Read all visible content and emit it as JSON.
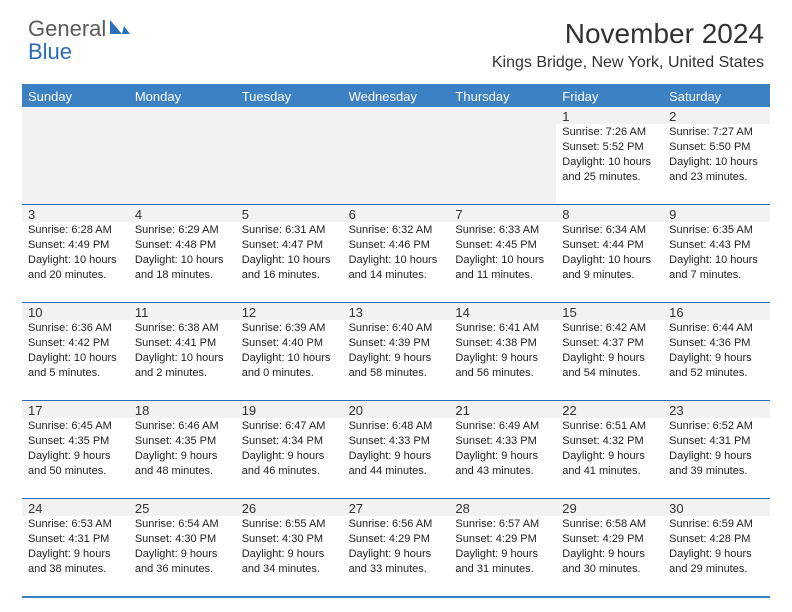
{
  "logo": {
    "general": "General",
    "blue": "Blue"
  },
  "title": "November 2024",
  "location": "Kings Bridge, New York, United States",
  "colors": {
    "accent": "#3c81c3",
    "border": "#2a6db8",
    "daybg": "#f2f2f2",
    "text": "#222222",
    "logo_gray": "#5a5a5a",
    "logo_blue": "#2a6db8"
  },
  "dow": [
    "Sunday",
    "Monday",
    "Tuesday",
    "Wednesday",
    "Thursday",
    "Friday",
    "Saturday"
  ],
  "weeks": [
    [
      null,
      null,
      null,
      null,
      null,
      {
        "n": "1",
        "sr": "Sunrise: 7:26 AM",
        "ss": "Sunset: 5:52 PM",
        "d1": "Daylight: 10 hours",
        "d2": "and 25 minutes."
      },
      {
        "n": "2",
        "sr": "Sunrise: 7:27 AM",
        "ss": "Sunset: 5:50 PM",
        "d1": "Daylight: 10 hours",
        "d2": "and 23 minutes."
      }
    ],
    [
      {
        "n": "3",
        "sr": "Sunrise: 6:28 AM",
        "ss": "Sunset: 4:49 PM",
        "d1": "Daylight: 10 hours",
        "d2": "and 20 minutes."
      },
      {
        "n": "4",
        "sr": "Sunrise: 6:29 AM",
        "ss": "Sunset: 4:48 PM",
        "d1": "Daylight: 10 hours",
        "d2": "and 18 minutes."
      },
      {
        "n": "5",
        "sr": "Sunrise: 6:31 AM",
        "ss": "Sunset: 4:47 PM",
        "d1": "Daylight: 10 hours",
        "d2": "and 16 minutes."
      },
      {
        "n": "6",
        "sr": "Sunrise: 6:32 AM",
        "ss": "Sunset: 4:46 PM",
        "d1": "Daylight: 10 hours",
        "d2": "and 14 minutes."
      },
      {
        "n": "7",
        "sr": "Sunrise: 6:33 AM",
        "ss": "Sunset: 4:45 PM",
        "d1": "Daylight: 10 hours",
        "d2": "and 11 minutes."
      },
      {
        "n": "8",
        "sr": "Sunrise: 6:34 AM",
        "ss": "Sunset: 4:44 PM",
        "d1": "Daylight: 10 hours",
        "d2": "and 9 minutes."
      },
      {
        "n": "9",
        "sr": "Sunrise: 6:35 AM",
        "ss": "Sunset: 4:43 PM",
        "d1": "Daylight: 10 hours",
        "d2": "and 7 minutes."
      }
    ],
    [
      {
        "n": "10",
        "sr": "Sunrise: 6:36 AM",
        "ss": "Sunset: 4:42 PM",
        "d1": "Daylight: 10 hours",
        "d2": "and 5 minutes."
      },
      {
        "n": "11",
        "sr": "Sunrise: 6:38 AM",
        "ss": "Sunset: 4:41 PM",
        "d1": "Daylight: 10 hours",
        "d2": "and 2 minutes."
      },
      {
        "n": "12",
        "sr": "Sunrise: 6:39 AM",
        "ss": "Sunset: 4:40 PM",
        "d1": "Daylight: 10 hours",
        "d2": "and 0 minutes."
      },
      {
        "n": "13",
        "sr": "Sunrise: 6:40 AM",
        "ss": "Sunset: 4:39 PM",
        "d1": "Daylight: 9 hours",
        "d2": "and 58 minutes."
      },
      {
        "n": "14",
        "sr": "Sunrise: 6:41 AM",
        "ss": "Sunset: 4:38 PM",
        "d1": "Daylight: 9 hours",
        "d2": "and 56 minutes."
      },
      {
        "n": "15",
        "sr": "Sunrise: 6:42 AM",
        "ss": "Sunset: 4:37 PM",
        "d1": "Daylight: 9 hours",
        "d2": "and 54 minutes."
      },
      {
        "n": "16",
        "sr": "Sunrise: 6:44 AM",
        "ss": "Sunset: 4:36 PM",
        "d1": "Daylight: 9 hours",
        "d2": "and 52 minutes."
      }
    ],
    [
      {
        "n": "17",
        "sr": "Sunrise: 6:45 AM",
        "ss": "Sunset: 4:35 PM",
        "d1": "Daylight: 9 hours",
        "d2": "and 50 minutes."
      },
      {
        "n": "18",
        "sr": "Sunrise: 6:46 AM",
        "ss": "Sunset: 4:35 PM",
        "d1": "Daylight: 9 hours",
        "d2": "and 48 minutes."
      },
      {
        "n": "19",
        "sr": "Sunrise: 6:47 AM",
        "ss": "Sunset: 4:34 PM",
        "d1": "Daylight: 9 hours",
        "d2": "and 46 minutes."
      },
      {
        "n": "20",
        "sr": "Sunrise: 6:48 AM",
        "ss": "Sunset: 4:33 PM",
        "d1": "Daylight: 9 hours",
        "d2": "and 44 minutes."
      },
      {
        "n": "21",
        "sr": "Sunrise: 6:49 AM",
        "ss": "Sunset: 4:33 PM",
        "d1": "Daylight: 9 hours",
        "d2": "and 43 minutes."
      },
      {
        "n": "22",
        "sr": "Sunrise: 6:51 AM",
        "ss": "Sunset: 4:32 PM",
        "d1": "Daylight: 9 hours",
        "d2": "and 41 minutes."
      },
      {
        "n": "23",
        "sr": "Sunrise: 6:52 AM",
        "ss": "Sunset: 4:31 PM",
        "d1": "Daylight: 9 hours",
        "d2": "and 39 minutes."
      }
    ],
    [
      {
        "n": "24",
        "sr": "Sunrise: 6:53 AM",
        "ss": "Sunset: 4:31 PM",
        "d1": "Daylight: 9 hours",
        "d2": "and 38 minutes."
      },
      {
        "n": "25",
        "sr": "Sunrise: 6:54 AM",
        "ss": "Sunset: 4:30 PM",
        "d1": "Daylight: 9 hours",
        "d2": "and 36 minutes."
      },
      {
        "n": "26",
        "sr": "Sunrise: 6:55 AM",
        "ss": "Sunset: 4:30 PM",
        "d1": "Daylight: 9 hours",
        "d2": "and 34 minutes."
      },
      {
        "n": "27",
        "sr": "Sunrise: 6:56 AM",
        "ss": "Sunset: 4:29 PM",
        "d1": "Daylight: 9 hours",
        "d2": "and 33 minutes."
      },
      {
        "n": "28",
        "sr": "Sunrise: 6:57 AM",
        "ss": "Sunset: 4:29 PM",
        "d1": "Daylight: 9 hours",
        "d2": "and 31 minutes."
      },
      {
        "n": "29",
        "sr": "Sunrise: 6:58 AM",
        "ss": "Sunset: 4:29 PM",
        "d1": "Daylight: 9 hours",
        "d2": "and 30 minutes."
      },
      {
        "n": "30",
        "sr": "Sunrise: 6:59 AM",
        "ss": "Sunset: 4:28 PM",
        "d1": "Daylight: 9 hours",
        "d2": "and 29 minutes."
      }
    ]
  ]
}
